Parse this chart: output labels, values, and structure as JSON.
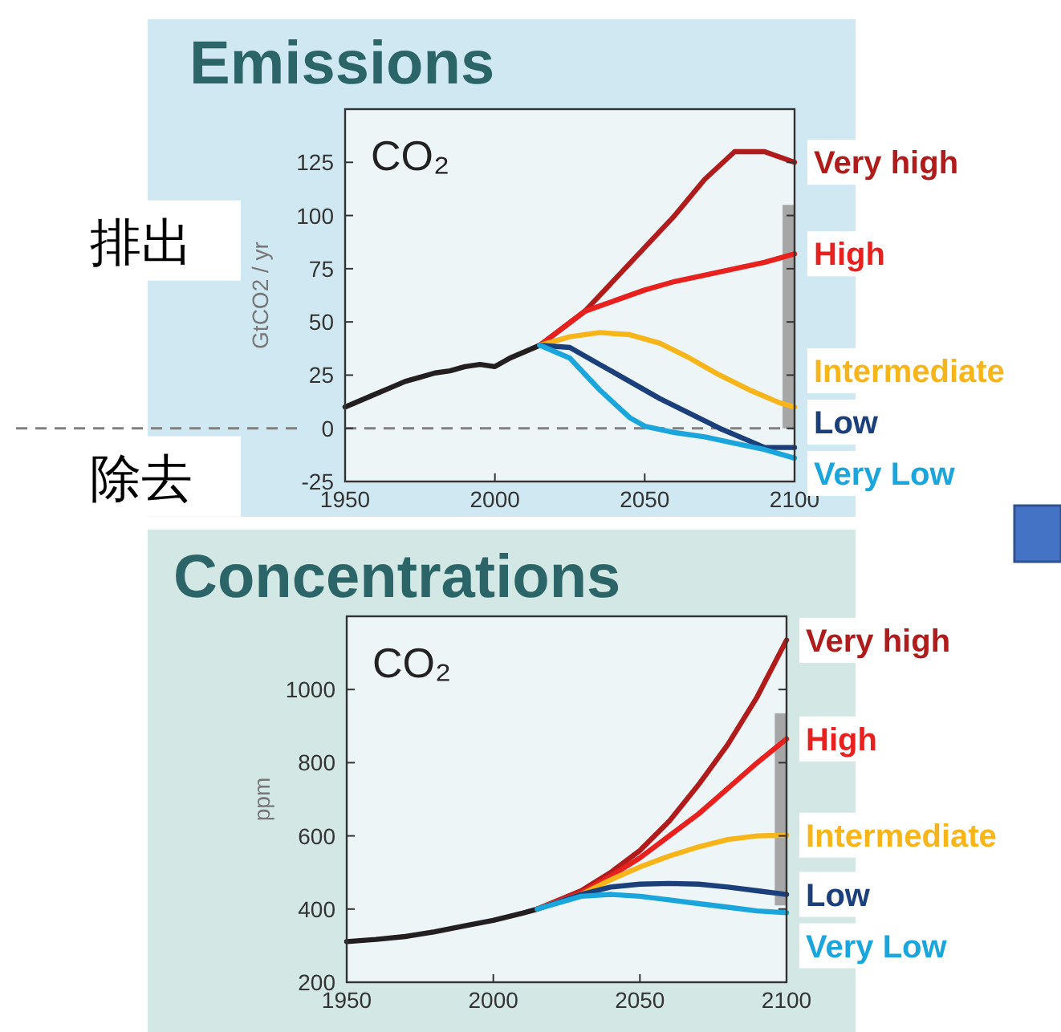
{
  "chart_data": [
    {
      "type": "line",
      "title": "Emissions",
      "ylabel": "GtCO2 / yr",
      "xlim": [
        1950,
        2100
      ],
      "ylim": [
        -25,
        150
      ],
      "xticks": [
        1950,
        2000,
        2050,
        2100
      ],
      "yticks": [
        -25,
        0,
        25,
        50,
        75,
        100,
        125
      ],
      "legend": "right",
      "annotations": [
        "CO₂",
        "排出",
        "除去"
      ],
      "ref_lines": [
        {
          "axis": "y",
          "value": 0,
          "color": "#808080",
          "line_style": "dashed"
        }
      ],
      "series": [
        {
          "color": "#231f20",
          "x": [
            1950,
            1955,
            1960,
            1965,
            1970,
            1975,
            1980,
            1985,
            1990,
            1995,
            2000,
            2005,
            2010,
            2015
          ],
          "values": [
            10,
            13,
            16,
            19,
            22,
            24,
            26,
            27,
            29,
            30,
            29,
            33,
            36,
            39
          ]
        },
        {
          "type": "bar",
          "color": "#a6a6a6",
          "x": [
            2098
          ],
          "base": [
            0
          ],
          "values": [
            105
          ]
        },
        {
          "name": "Very high",
          "color": "#b01c1c",
          "x": [
            2015,
            2030,
            2040,
            2050,
            2060,
            2070,
            2080,
            2090,
            2100
          ],
          "values": [
            39,
            55,
            70,
            85,
            100,
            117,
            130,
            130,
            125
          ]
        },
        {
          "name": "High",
          "color": "#e8211f",
          "x": [
            2015,
            2030,
            2040,
            2050,
            2060,
            2070,
            2080,
            2090,
            2100
          ],
          "values": [
            39,
            55,
            60,
            65,
            69,
            72,
            75,
            78,
            82
          ]
        },
        {
          "name": "Intermediate",
          "color": "#f8b51a",
          "x": [
            2015,
            2025,
            2035,
            2045,
            2055,
            2065,
            2075,
            2085,
            2095,
            2100
          ],
          "values": [
            39,
            43,
            45,
            44,
            40,
            33,
            25,
            18,
            12,
            10
          ]
        },
        {
          "name": "Low",
          "color": "#1b3f7a",
          "x": [
            2015,
            2025,
            2035,
            2045,
            2055,
            2065,
            2075,
            2085,
            2090,
            2100
          ],
          "values": [
            39,
            38,
            30,
            22,
            14,
            7,
            0,
            -6,
            -9,
            -9
          ]
        },
        {
          "name": "Very Low",
          "color": "#1aa6dc",
          "x": [
            2015,
            2025,
            2035,
            2045,
            2050,
            2060,
            2070,
            2080,
            2090,
            2100
          ],
          "values": [
            39,
            33,
            18,
            5,
            1,
            -2,
            -4,
            -7,
            -10,
            -14
          ]
        }
      ]
    },
    {
      "type": "line",
      "title": "Concentrations",
      "ylabel": "ppm",
      "xlim": [
        1950,
        2100
      ],
      "ylim": [
        200,
        1200
      ],
      "xticks": [
        1950,
        2000,
        2050,
        2100
      ],
      "yticks": [
        200,
        400,
        600,
        800,
        1000
      ],
      "legend": "right",
      "annotations": [
        "CO₂"
      ],
      "series": [
        {
          "color": "#231f20",
          "x": [
            1950,
            1960,
            1970,
            1980,
            1990,
            2000,
            2010,
            2015
          ],
          "values": [
            311,
            317,
            325,
            338,
            354,
            369,
            389,
            400
          ]
        },
        {
          "type": "bar",
          "color": "#a6a6a6",
          "x": [
            2098
          ],
          "base": [
            410
          ],
          "values": [
            525
          ]
        },
        {
          "name": "Very high",
          "color": "#b01c1c",
          "x": [
            2015,
            2030,
            2040,
            2050,
            2060,
            2070,
            2080,
            2090,
            2100
          ],
          "values": [
            400,
            450,
            500,
            560,
            640,
            740,
            850,
            980,
            1135
          ]
        },
        {
          "name": "High",
          "color": "#e8211f",
          "x": [
            2015,
            2030,
            2040,
            2050,
            2060,
            2070,
            2080,
            2090,
            2100
          ],
          "values": [
            400,
            445,
            490,
            540,
            600,
            660,
            730,
            800,
            865
          ]
        },
        {
          "name": "Intermediate",
          "color": "#f8b51a",
          "x": [
            2015,
            2030,
            2040,
            2050,
            2060,
            2070,
            2080,
            2090,
            2100
          ],
          "values": [
            400,
            440,
            480,
            515,
            545,
            570,
            590,
            600,
            602
          ]
        },
        {
          "name": "Low",
          "color": "#1b3f7a",
          "x": [
            2015,
            2030,
            2040,
            2050,
            2060,
            2070,
            2080,
            2090,
            2100
          ],
          "values": [
            400,
            440,
            460,
            468,
            470,
            468,
            460,
            450,
            440
          ]
        },
        {
          "name": "Very Low",
          "color": "#1aa6dc",
          "x": [
            2015,
            2030,
            2040,
            2050,
            2060,
            2070,
            2080,
            2090,
            2100
          ],
          "values": [
            400,
            435,
            440,
            435,
            425,
            415,
            405,
            395,
            390
          ]
        }
      ]
    }
  ]
}
